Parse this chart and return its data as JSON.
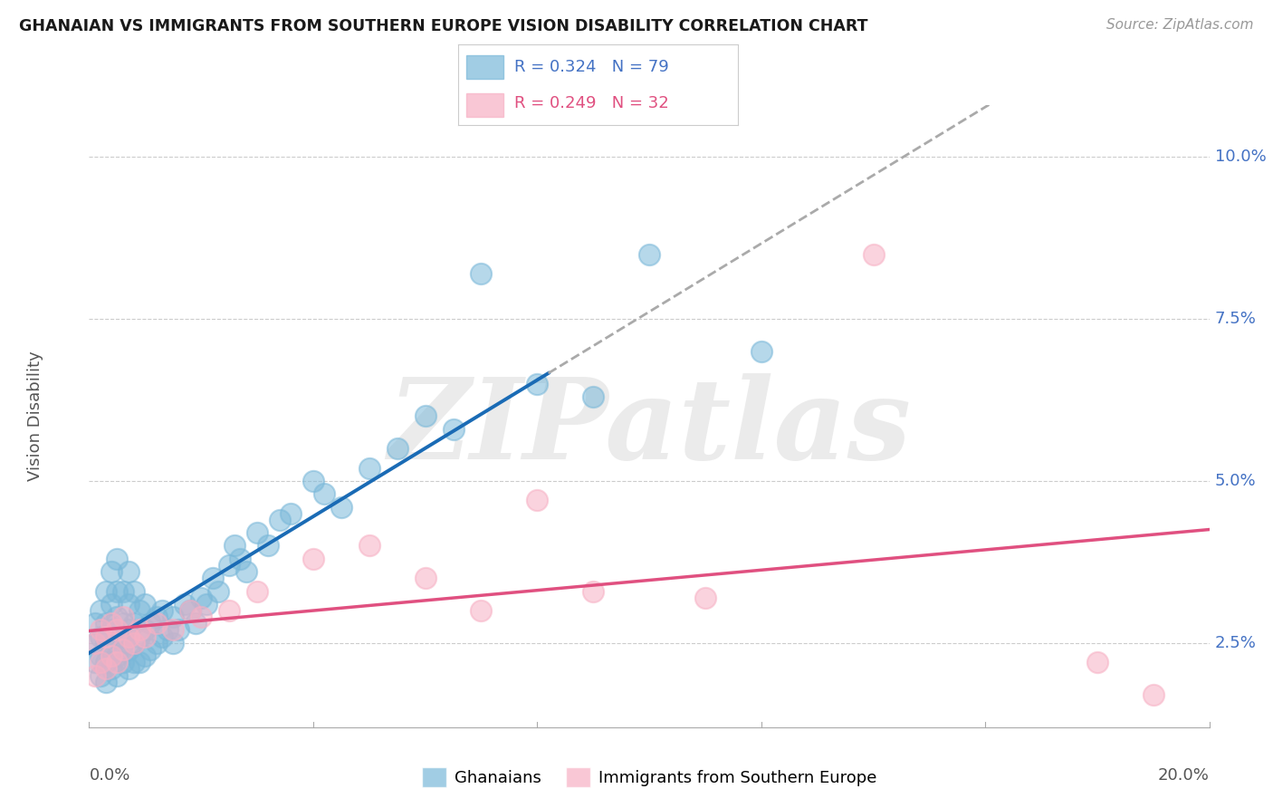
{
  "title": "GHANAIAN VS IMMIGRANTS FROM SOUTHERN EUROPE VISION DISABILITY CORRELATION CHART",
  "source": "Source: ZipAtlas.com",
  "ylabel": "Vision Disability",
  "xlim": [
    0.0,
    0.2
  ],
  "ylim": [
    0.012,
    0.108
  ],
  "yticks": [
    0.025,
    0.05,
    0.075,
    0.1
  ],
  "ytick_labels": [
    "2.5%",
    "5.0%",
    "7.5%",
    "10.0%"
  ],
  "xtick_left": "0.0%",
  "xtick_right": "20.0%",
  "ghanaian_color": "#7ab8d9",
  "southern_europe_color": "#f7b0c4",
  "ghanaian_line_color": "#1a6bb5",
  "southern_europe_line_color": "#e05080",
  "legend_label1": "Ghanaians",
  "legend_label2": "Immigrants from Southern Europe",
  "watermark": "ZIPatlas",
  "ghanaian_x": [
    0.001,
    0.001,
    0.001,
    0.002,
    0.002,
    0.002,
    0.002,
    0.003,
    0.003,
    0.003,
    0.003,
    0.003,
    0.004,
    0.004,
    0.004,
    0.004,
    0.004,
    0.005,
    0.005,
    0.005,
    0.005,
    0.005,
    0.005,
    0.006,
    0.006,
    0.006,
    0.006,
    0.007,
    0.007,
    0.007,
    0.007,
    0.007,
    0.008,
    0.008,
    0.008,
    0.008,
    0.009,
    0.009,
    0.009,
    0.01,
    0.01,
    0.01,
    0.011,
    0.011,
    0.012,
    0.012,
    0.013,
    0.013,
    0.014,
    0.015,
    0.015,
    0.016,
    0.017,
    0.018,
    0.019,
    0.02,
    0.021,
    0.022,
    0.023,
    0.025,
    0.026,
    0.027,
    0.028,
    0.03,
    0.032,
    0.034,
    0.036,
    0.04,
    0.042,
    0.045,
    0.05,
    0.055,
    0.06,
    0.065,
    0.07,
    0.08,
    0.09,
    0.1,
    0.12
  ],
  "ghanaian_y": [
    0.022,
    0.025,
    0.028,
    0.02,
    0.023,
    0.026,
    0.03,
    0.019,
    0.022,
    0.025,
    0.028,
    0.033,
    0.021,
    0.024,
    0.027,
    0.031,
    0.036,
    0.02,
    0.023,
    0.026,
    0.029,
    0.033,
    0.038,
    0.022,
    0.025,
    0.028,
    0.033,
    0.021,
    0.024,
    0.027,
    0.031,
    0.036,
    0.022,
    0.025,
    0.028,
    0.033,
    0.022,
    0.026,
    0.03,
    0.023,
    0.027,
    0.031,
    0.024,
    0.028,
    0.025,
    0.029,
    0.026,
    0.03,
    0.027,
    0.025,
    0.029,
    0.027,
    0.031,
    0.03,
    0.028,
    0.032,
    0.031,
    0.035,
    0.033,
    0.037,
    0.04,
    0.038,
    0.036,
    0.042,
    0.04,
    0.044,
    0.045,
    0.05,
    0.048,
    0.046,
    0.052,
    0.055,
    0.06,
    0.058,
    0.082,
    0.065,
    0.063,
    0.085,
    0.07
  ],
  "southern_europe_x": [
    0.001,
    0.001,
    0.002,
    0.002,
    0.003,
    0.003,
    0.004,
    0.004,
    0.005,
    0.005,
    0.006,
    0.006,
    0.007,
    0.008,
    0.009,
    0.01,
    0.012,
    0.015,
    0.018,
    0.02,
    0.025,
    0.03,
    0.04,
    0.05,
    0.06,
    0.07,
    0.08,
    0.09,
    0.11,
    0.14,
    0.18,
    0.19
  ],
  "southern_europe_y": [
    0.02,
    0.025,
    0.022,
    0.027,
    0.021,
    0.026,
    0.023,
    0.028,
    0.022,
    0.027,
    0.024,
    0.029,
    0.026,
    0.025,
    0.027,
    0.026,
    0.028,
    0.027,
    0.03,
    0.029,
    0.03,
    0.033,
    0.038,
    0.04,
    0.035,
    0.03,
    0.047,
    0.033,
    0.032,
    0.085,
    0.022,
    0.017
  ]
}
